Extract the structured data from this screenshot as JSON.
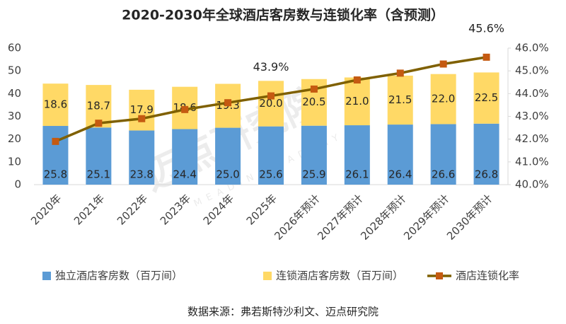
{
  "chart_data": {
    "type": "bar",
    "stacked": true,
    "title": "2020-2030年全球酒店客房数与连锁化率（含预测）",
    "source": "数据来源：弗若斯特沙利文、迈点研究院",
    "watermark": "迈点研究院",
    "watermark_sub": "MEADIN ACADEMY",
    "categories": [
      "2020年",
      "2021年",
      "2022年",
      "2023年",
      "2024年",
      "2025年",
      "2026年预计",
      "2027年预计",
      "2028年预计",
      "2029年预计",
      "2030年预计"
    ],
    "series": [
      {
        "name": "独立酒店客房数（百万间）",
        "color": "#5b9bd5",
        "values": [
          25.8,
          25.1,
          23.8,
          24.4,
          25.0,
          25.6,
          25.9,
          26.1,
          26.4,
          26.6,
          26.8
        ],
        "value_labels": [
          "25.8",
          "25.1",
          "23.8",
          "24.4",
          "25.0",
          "25.6",
          "25.9",
          "26.1",
          "26.4",
          "26.6",
          "26.8"
        ]
      },
      {
        "name": "连锁酒店客房数（百万间）",
        "color": "#ffd966",
        "values": [
          18.6,
          18.7,
          17.9,
          18.6,
          19.3,
          20.0,
          20.5,
          21.0,
          21.5,
          22.0,
          22.5
        ],
        "value_labels": [
          "18.6",
          "18.7",
          "17.9",
          "18.6",
          "19.3",
          "20.0",
          "20.5",
          "21.0",
          "21.5",
          "22.0",
          "22.5"
        ]
      },
      {
        "name": "酒店连锁化率",
        "type": "line",
        "axis": "y2",
        "color": "#7f6000",
        "marker_color": "#c55a11",
        "values": [
          41.9,
          42.7,
          42.9,
          43.3,
          43.6,
          43.9,
          44.2,
          44.6,
          44.9,
          45.3,
          45.6
        ],
        "value_labels": [
          null,
          null,
          null,
          null,
          null,
          "43.9%",
          null,
          null,
          null,
          null,
          "45.6%"
        ]
      }
    ],
    "ylim": [
      0,
      60
    ],
    "yticks": [
      0,
      10,
      20,
      30,
      40,
      50,
      60
    ],
    "y2lim": [
      40,
      46
    ],
    "y2ticks": [
      {
        "value": 40,
        "label": "40.0%"
      },
      {
        "value": 41,
        "label": "41.0%"
      },
      {
        "value": 42,
        "label": "42.0%"
      },
      {
        "value": 43,
        "label": "43.0%"
      },
      {
        "value": 44,
        "label": "44.0%"
      },
      {
        "value": 45,
        "label": "45.0%"
      },
      {
        "value": 46,
        "label": "46.0%"
      }
    ],
    "grid": false,
    "legend": "bottom"
  }
}
